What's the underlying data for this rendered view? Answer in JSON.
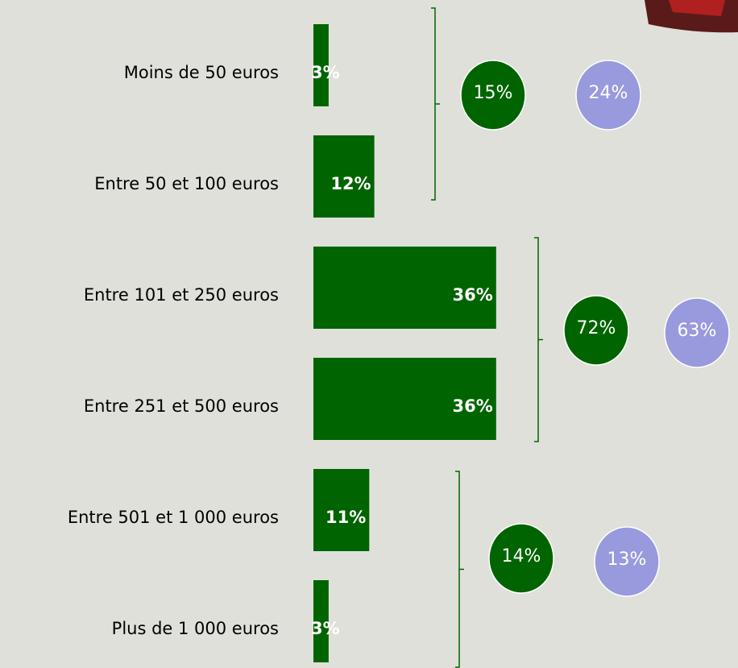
{
  "chart_data": {
    "type": "bar",
    "categories": [
      "Moins de 50 euros",
      "Entre 50 et 100 euros",
      "Entre 101 et 250 euros",
      "Entre 251 et 500 euros",
      "Entre 501 et 1 000 euros",
      "Plus de 1 000 euros"
    ],
    "values": [
      3,
      12,
      36,
      36,
      11,
      3
    ],
    "value_labels": [
      "3%",
      "12%",
      "36%",
      "36%",
      "11%",
      "3%"
    ],
    "color": "#006400",
    "groups": [
      {
        "values": [
          15,
          24
        ],
        "value_labels": [
          "15%",
          "24%"
        ]
      },
      {
        "values": [
          72,
          63
        ],
        "value_labels": [
          "72%",
          "63%"
        ]
      },
      {
        "values": [
          14,
          13
        ],
        "value_labels": [
          "14%",
          "13%"
        ]
      }
    ],
    "group_colors": [
      "#006400",
      "#9999dd"
    ]
  }
}
